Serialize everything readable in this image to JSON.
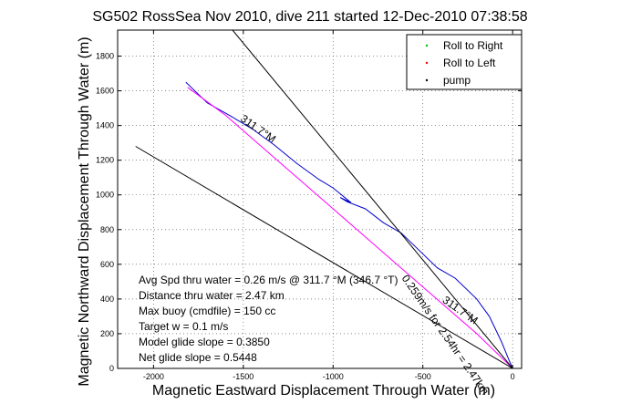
{
  "chart_data": {
    "type": "line",
    "title": "SG502 RossSea Nov 2010, dive 211 started 12-Dec-2010 07:38:58",
    "xlabel": "Magnetic Eastward Displacement Through Water (m)",
    "ylabel": "Magnetic Northward Displacement Through Water (m)",
    "xlim": [
      -2200,
      50
    ],
    "ylim": [
      0,
      1950
    ],
    "xticks": [
      -2000,
      -1500,
      -1000,
      -500,
      0
    ],
    "yticks": [
      0,
      200,
      400,
      600,
      800,
      1000,
      1200,
      1400,
      1600,
      1800
    ],
    "grid": true,
    "legend_position": "top-right",
    "legend": [
      {
        "label": "Roll to Right",
        "color": "#00c000"
      },
      {
        "label": "Roll to Left",
        "color": "#ff0000"
      },
      {
        "label": "pump",
        "color": "#000000"
      }
    ],
    "series": [
      {
        "color": "#0000cc",
        "x": [
          0,
          -25,
          -60,
          -130,
          -200,
          -320,
          -420,
          -540,
          -620,
          -720,
          -820,
          -920,
          -960,
          -900,
          -1000,
          -1080,
          -1200,
          -1330,
          -1450,
          -1580,
          -1700,
          -1790,
          -1820
        ],
        "y": [
          0,
          60,
          150,
          300,
          400,
          520,
          580,
          700,
          780,
          840,
          920,
          960,
          985,
          955,
          1040,
          1090,
          1180,
          1290,
          1380,
          1460,
          1530,
          1620,
          1650
        ]
      },
      {
        "color": "#ff00ff",
        "x": [
          0,
          -200,
          -400,
          -600,
          -800,
          -1000,
          -1200,
          -1400,
          -1600,
          -1810
        ],
        "y": [
          0,
          200,
          380,
          560,
          740,
          920,
          1100,
          1280,
          1460,
          1620
        ]
      },
      {
        "color": "#000000",
        "x": [
          0,
          -2100
        ],
        "y": [
          0,
          1280
        ]
      },
      {
        "color": "#000000",
        "x": [
          0,
          -1560
        ],
        "y": [
          0,
          1950
        ]
      }
    ],
    "annotations": [
      {
        "text": "311.7°M",
        "x": -1520,
        "y": 1430,
        "rotation": 35
      },
      {
        "text": "311.7°M",
        "x": -395,
        "y": 385,
        "rotation": 35
      },
      {
        "text": "0.259m/s for 2.54hr = 2.47km",
        "x": -620,
        "y": 520,
        "rotation": 55
      }
    ],
    "stats": [
      "Avg Spd thru water =  0.26 m/s @ 311.7 °M (346.7 °T)",
      "Distance thru water =  2.47 km",
      "Max buoy (cmdfile) = 150 cc",
      "Target w = 0.1 m/s",
      "Model glide slope = 0.3850",
      "Net glide slope = 0.5448"
    ]
  }
}
